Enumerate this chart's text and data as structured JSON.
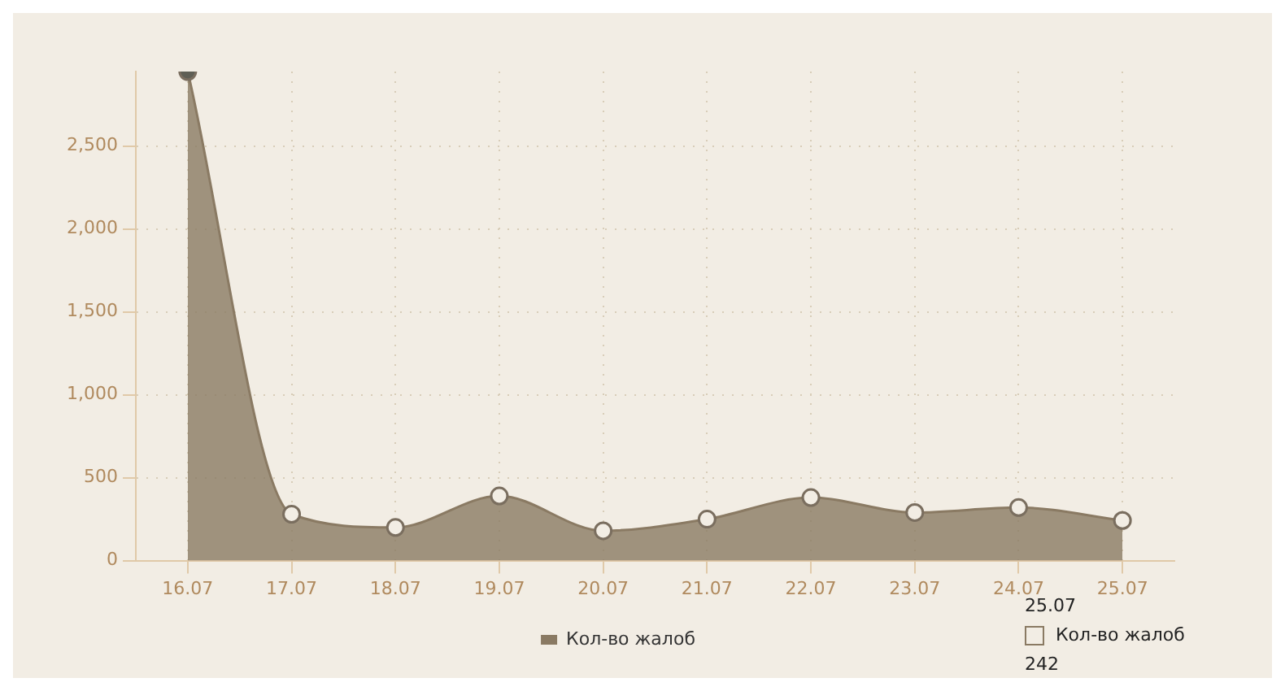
{
  "chart_data": {
    "type": "area",
    "categories": [
      "16.07",
      "17.07",
      "18.07",
      "19.07",
      "20.07",
      "21.07",
      "22.07",
      "23.07",
      "24.07",
      "25.07"
    ],
    "series": [
      {
        "name": "Кол-во жалоб",
        "color": "#8a7a63",
        "values": [
          2950,
          280,
          200,
          390,
          180,
          250,
          380,
          290,
          320,
          242
        ]
      }
    ],
    "ylim": [
      0,
      2950
    ],
    "yticks": [
      0,
      500,
      {
        "value": 1000,
        "label": "1,000"
      },
      {
        "value": 1500,
        "label": "1,500"
      },
      {
        "value": 2000,
        "label": "2,000"
      },
      {
        "value": 2500,
        "label": "2,500"
      }
    ],
    "grid": true,
    "legend": "bottom",
    "marker": "circle",
    "annotations": [
      "25.07",
      "Кол-во жалоб",
      "242"
    ]
  }
}
